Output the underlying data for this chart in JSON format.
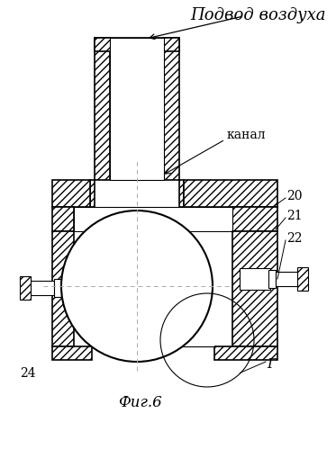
{
  "title": "Фиг.6",
  "label_air": "Подвод воздуха",
  "label_kanal": "канал",
  "label_20": "20",
  "label_21": "21",
  "label_22": "22",
  "label_24": "24",
  "label_G": "Г",
  "fig_width": 3.73,
  "fig_height": 4.99,
  "dpi": 100
}
